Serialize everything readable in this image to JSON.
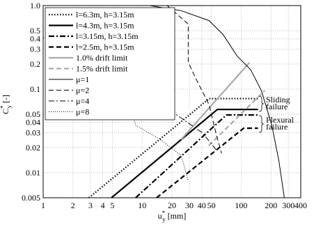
{
  "chart_data": {
    "type": "line",
    "x_label": {
      "base": "u",
      "sup": "*",
      "sub": "y",
      "unit": "[mm]"
    },
    "y_label": {
      "base": "C",
      "sup": "*",
      "sub": "y",
      "unit": "[-]"
    },
    "log_x": true,
    "log_y": true,
    "grid": true,
    "legend": "upper left",
    "xlim": [
      1,
      400
    ],
    "ylim": [
      0.005,
      1
    ],
    "xticks": [
      1,
      2,
      3,
      4,
      5,
      10,
      20,
      30,
      40,
      50,
      100,
      200,
      300,
      400
    ],
    "yticks": [
      0.005,
      0.01,
      0.02,
      0.03,
      0.04,
      0.05,
      0.1,
      0.2,
      0.3,
      0.4,
      0.5,
      {
        "value": 1,
        "label": "1.0"
      }
    ],
    "series": [
      {
        "name": "l=6.3m, h=3.15m",
        "color": "#000000",
        "style": "dotted",
        "thick": true,
        "x": [
          2.9,
          47.5,
          148
        ],
        "values": [
          0.005,
          0.077,
          0.077
        ]
      },
      {
        "name": "l=4.3m, h=3.15m",
        "color": "#000000",
        "style": "solid",
        "thick": true,
        "x": [
          4.9,
          57.5,
          148
        ],
        "values": [
          0.005,
          0.057,
          0.057
        ]
      },
      {
        "name": "l=3.15m, h=3.15m",
        "color": "#000000",
        "style": "dashdot",
        "thick": true,
        "x": [
          8.6,
          71,
          148
        ],
        "values": [
          0.005,
          0.049,
          0.049
        ]
      },
      {
        "name": "l=2.5m, h=3.15m",
        "color": "#000000",
        "style": "dashed",
        "thick": true,
        "x": [
          14,
          106,
          148
        ],
        "values": [
          0.005,
          0.034,
          0.034
        ]
      },
      {
        "name": "1.0% drift limit",
        "color": "#aaaaaa",
        "style": "solid",
        "thick": true,
        "x": [
          24.8,
          121
        ],
        "values": [
          0.025,
          0.207
        ]
      },
      {
        "name": "1.5% drift limit",
        "color": "#aaaaaa",
        "style": "dashed",
        "thick": true,
        "x": [
          47,
          173
        ],
        "values": [
          0.021,
          0.096
        ]
      },
      {
        "name": "μ=1",
        "color": "#000000",
        "style": "solid",
        "thick": false,
        "x": [
          11.9,
          24.8,
          47.4,
          65.6,
          90.7,
          125,
          160,
          204,
          240,
          273
        ],
        "values": [
          1.0,
          0.87,
          0.66,
          0.45,
          0.25,
          0.17,
          0.096,
          0.037,
          0.014,
          0.005
        ]
      },
      {
        "name": "μ=2",
        "color": "#000000",
        "style": "dashed",
        "thick": false,
        "x": [
          17.9,
          29.2,
          29.2,
          34.2,
          47.4,
          55.6,
          63.3
        ],
        "values": [
          1.0,
          0.6,
          0.21,
          0.14,
          0.065,
          0.03,
          0.017
        ]
      },
      {
        "name": "μ=4",
        "color": "#000000",
        "style": "dashdot",
        "thick": false,
        "x": [
          8.0,
          10.2,
          13.0,
          15.2,
          24.8,
          40.5,
          55.6
        ],
        "values": [
          0.66,
          0.37,
          0.19,
          0.066,
          0.045,
          0.03,
          0.019
        ]
      },
      {
        "name": "μ=8",
        "color": "#000000",
        "style": "dotted",
        "thick": false,
        "x": [
          1,
          2.56,
          6.2,
          7.4,
          8.6,
          15.2,
          24.8,
          29.2
        ],
        "values": [
          0.41,
          0.3,
          0.17,
          0.066,
          0.037,
          0.025,
          0.016,
          0.008
        ]
      }
    ],
    "annotations": [
      [
        "Sliding",
        "failure"
      ],
      [
        "Flexural",
        "failure"
      ]
    ]
  }
}
